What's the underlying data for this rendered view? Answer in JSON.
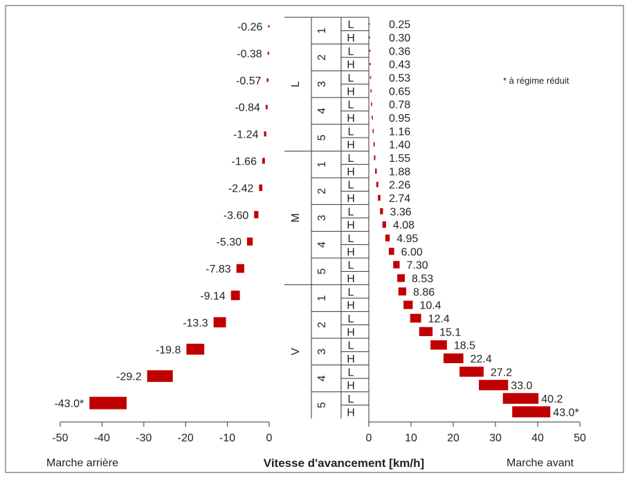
{
  "chart_data": {
    "type": "bar",
    "title": "Vitesse d'avancement [km/h]",
    "left_label": "Marche arrière",
    "right_label": "Marche avant",
    "note": "* à régime réduit",
    "reverse": {
      "xlim": [
        -50,
        0
      ],
      "ticks": [
        "-50",
        "-40",
        "-30",
        "-20",
        "-10",
        "0"
      ],
      "values": [
        -0.26,
        -0.38,
        -0.57,
        -0.84,
        -1.24,
        -1.66,
        -2.42,
        -3.6,
        -5.3,
        -7.83,
        -9.14,
        -13.3,
        -19.8,
        -29.2,
        -43.0
      ],
      "labels": [
        "-0.26",
        "-0.38",
        "-0.57",
        "-0.84",
        "-1.24",
        "-1.66",
        "-2.42",
        "-3.60",
        "-5.30",
        "-7.83",
        "-9.14",
        "-13.3",
        "-19.8",
        "-29.2",
        "-43.0*"
      ]
    },
    "forward": {
      "xlim": [
        0,
        50
      ],
      "ticks": [
        "0",
        "10",
        "20",
        "30",
        "40",
        "50"
      ],
      "values": [
        0.25,
        0.3,
        0.36,
        0.43,
        0.53,
        0.65,
        0.78,
        0.95,
        1.16,
        1.4,
        1.55,
        1.88,
        2.26,
        2.74,
        3.36,
        4.08,
        4.95,
        6.0,
        7.3,
        8.53,
        8.86,
        10.4,
        12.4,
        15.1,
        18.5,
        22.4,
        27.2,
        33.0,
        40.2,
        43.0
      ],
      "labels": [
        "0.25",
        "0.30",
        "0.36",
        "0.43",
        "0.53",
        "0.65",
        "0.78",
        "0.95",
        "1.16",
        "1.40",
        "1.55",
        "1.88",
        "2.26",
        "2.74",
        "3.36",
        "4.08",
        "4.95",
        "6.00",
        "7.30",
        "8.53",
        "8.86",
        "10.4",
        "12.4",
        "15.1",
        "18.5",
        "22.4",
        "27.2",
        "33.0",
        "40.2",
        "43.0*"
      ]
    },
    "ranges": [
      "L",
      "M",
      "V"
    ],
    "gears": [
      "1",
      "2",
      "3",
      "4",
      "5"
    ],
    "splits": [
      "L",
      "H"
    ],
    "bar_color": "#C00000"
  }
}
